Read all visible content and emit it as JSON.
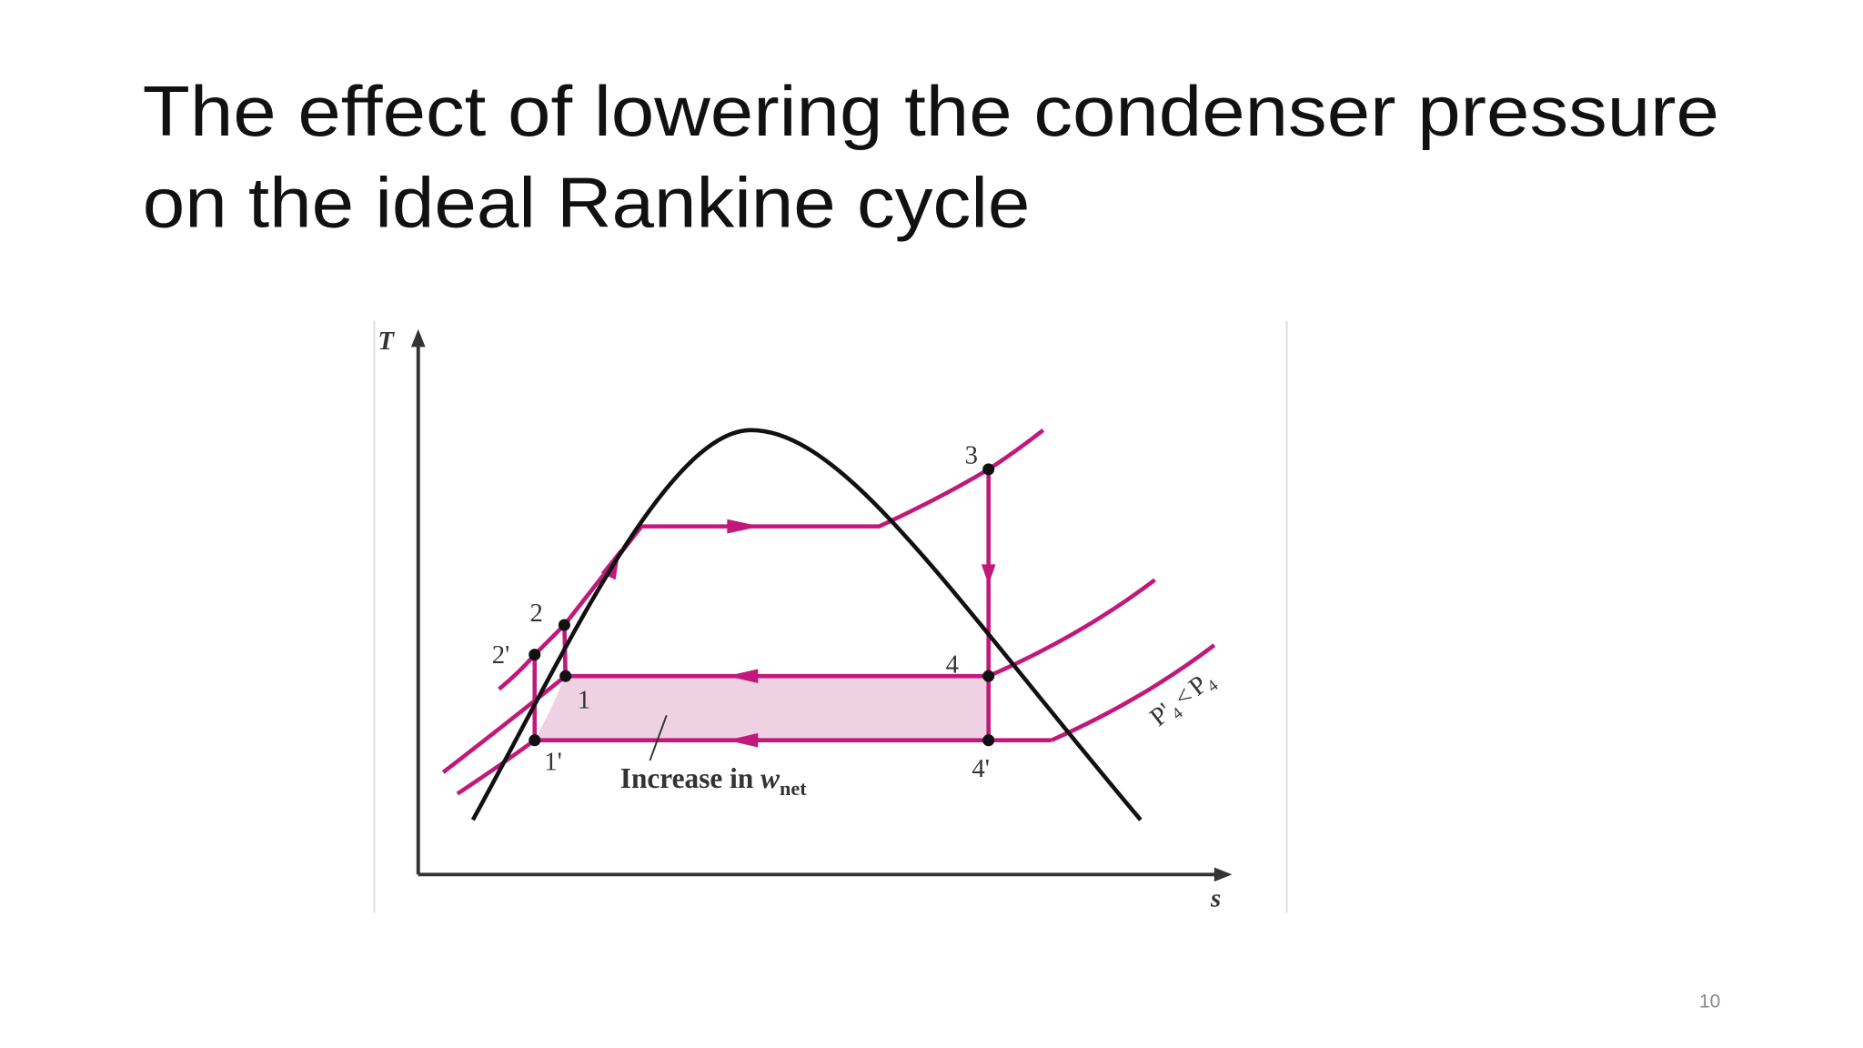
{
  "slide": {
    "title": [
      "The effect of lowering the condenser pressure",
      "on the ideal Rankine cycle"
    ],
    "page_number": "10",
    "diagram": {
      "axis_labels": {
        "y": "T",
        "x": "s"
      },
      "points": [
        "3",
        "2",
        "2'",
        "1",
        "1'",
        "4",
        "4'"
      ],
      "area_label": {
        "text": "Increase in",
        "symbol": "w",
        "subscript": "net"
      },
      "pressure_note": {
        "left": "P'",
        "left_sub": "4",
        "op": "<",
        "right": "P",
        "right_sub": "4"
      }
    }
  }
}
